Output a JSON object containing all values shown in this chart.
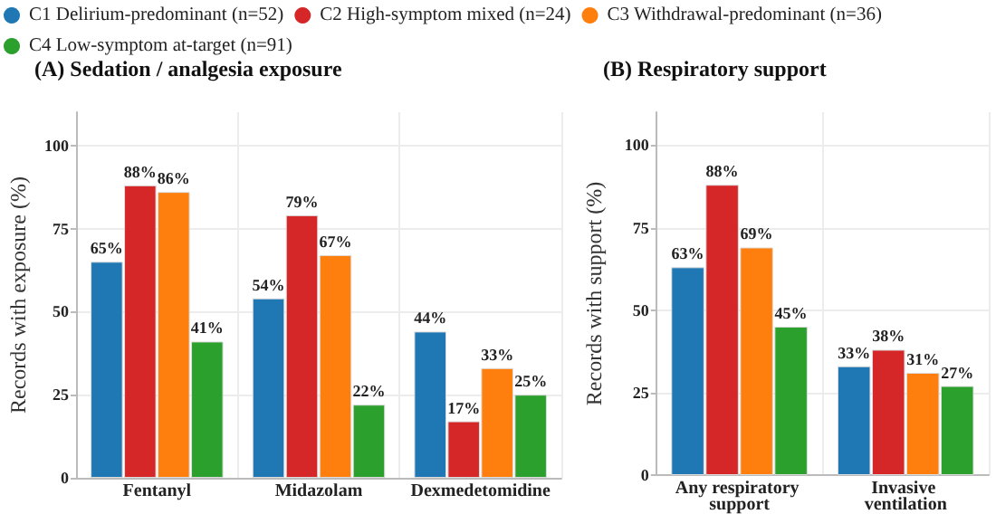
{
  "chart_data": [
    {
      "type": "bar",
      "title": "(A) Sedation / analgesia exposure",
      "ylabel": "Records with exposure (%)",
      "categories": [
        "Fentanyl",
        "Midazolam",
        "Dexmedetomidine"
      ],
      "ylim": [
        0,
        110
      ],
      "yticks": [
        0,
        25,
        50,
        75,
        100
      ],
      "grid": true,
      "legend": "top",
      "series": [
        {
          "name": "C1 Delirium-predominant (n=52)",
          "color": "#1f77b4",
          "values": [
            65,
            54,
            44
          ],
          "value_labels": [
            "65%",
            "54%",
            "44%"
          ]
        },
        {
          "name": "C2 High-symptom mixed (n=24)",
          "color": "#d62728",
          "values": [
            88,
            79,
            17
          ],
          "value_labels": [
            "88%",
            "79%",
            "17%"
          ]
        },
        {
          "name": "C3 Withdrawal-predominant (n=36)",
          "color": "#ff7f0e",
          "values": [
            86,
            67,
            33
          ],
          "value_labels": [
            "86%",
            "67%",
            "33%"
          ]
        },
        {
          "name": "C4 Low-symptom at-target (n=91)",
          "color": "#2ca02c",
          "values": [
            41,
            22,
            25
          ],
          "value_labels": [
            "41%",
            "22%",
            "25%"
          ]
        }
      ]
    },
    {
      "type": "bar",
      "title": "(B) Respiratory support",
      "ylabel": "Records with support (%)",
      "categories": [
        "Any respiratory support",
        "Invasive ventilation"
      ],
      "ylim": [
        0,
        110
      ],
      "yticks": [
        0,
        25,
        50,
        75,
        100
      ],
      "grid": true,
      "series": [
        {
          "color": "#1f77b4",
          "values": [
            63,
            33
          ],
          "value_labels": [
            "63%",
            "33%"
          ]
        },
        {
          "color": "#d62728",
          "values": [
            88,
            38
          ],
          "value_labels": [
            "88%",
            "38%"
          ]
        },
        {
          "color": "#ff7f0e",
          "values": [
            69,
            31
          ],
          "value_labels": [
            "69%",
            "31%"
          ]
        },
        {
          "color": "#2ca02c",
          "values": [
            45,
            27
          ],
          "value_labels": [
            "45%",
            "27%"
          ]
        }
      ]
    }
  ]
}
